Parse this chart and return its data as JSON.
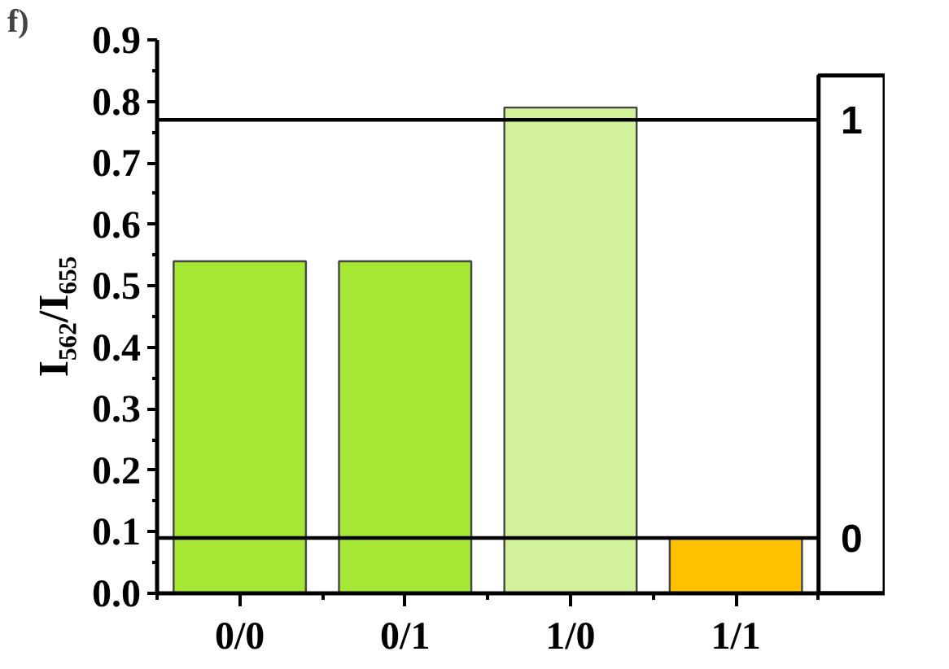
{
  "chart_data": {
    "type": "bar",
    "title": "f)",
    "ylabel": "I₅₆₂/I₆₅₅",
    "categories": [
      "0/0",
      "0/1",
      "1/0",
      "1/1"
    ],
    "values": [
      0.54,
      0.54,
      0.79,
      0.09
    ],
    "colors": [
      "#a6e634",
      "#a6e634",
      "#d1f29b",
      "#ffc000"
    ],
    "ylim": [
      0,
      0.9
    ],
    "yticks": [
      {
        "value": 0,
        "label": "0.0"
      },
      0.1,
      0.2,
      0.3,
      0.4,
      0.5,
      0.6,
      0.7,
      0.8,
      0.9
    ],
    "ref_lines": [
      {
        "axis": "y",
        "value": 0.77,
        "label": "1",
        "color": "#000000"
      },
      {
        "axis": "y",
        "value": 0.09,
        "label": "0",
        "color": "#000000"
      }
    ],
    "grid": false
  }
}
